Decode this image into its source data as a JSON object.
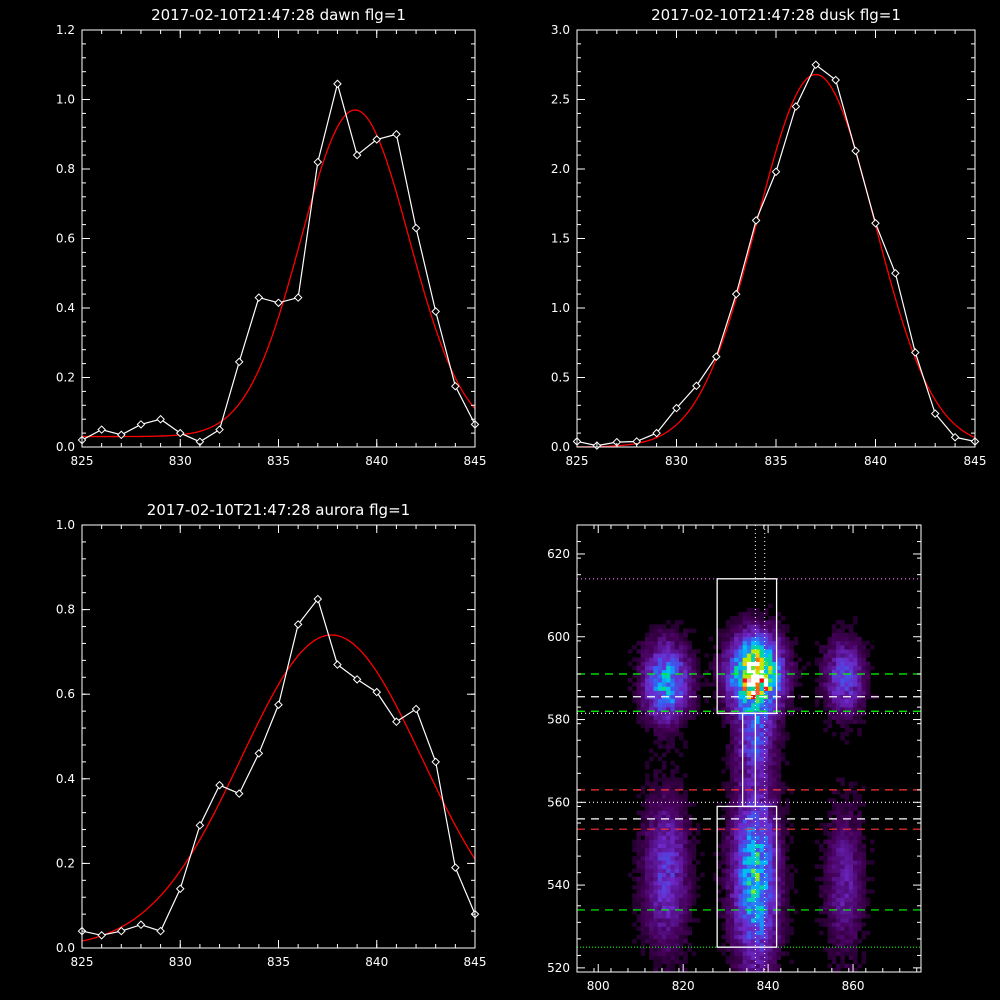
{
  "colors": {
    "background": "#000000",
    "data_line": "#ffffff",
    "fit_line": "#ff0000"
  },
  "chart_data": [
    {
      "type": "line",
      "title": "2017-02-10T21:47:28 dawn flg=1",
      "xlim": [
        825,
        845
      ],
      "ylim": [
        0,
        1.2
      ],
      "xticks": [
        "825",
        "830",
        "835",
        "840",
        "845"
      ],
      "yticks": [
        "0.0",
        "0.2",
        "0.4",
        "0.6",
        "0.8",
        "1.0",
        "1.2"
      ],
      "data": {
        "x": [
          825,
          826,
          827,
          828,
          829,
          830,
          831,
          832,
          833,
          834,
          835,
          836,
          837,
          838,
          839,
          840,
          841,
          842,
          843,
          844,
          845
        ],
        "y": [
          0.02,
          0.05,
          0.035,
          0.065,
          0.08,
          0.04,
          0.015,
          0.05,
          0.245,
          0.43,
          0.415,
          0.43,
          0.82,
          1.045,
          0.84,
          0.885,
          0.9,
          0.63,
          0.39,
          0.175,
          0.065
        ]
      },
      "fit": {
        "amplitude": 0.94,
        "center": 838.9,
        "sigma": 2.75,
        "offset": 0.03
      }
    },
    {
      "type": "line",
      "title": "2017-02-10T21:47:28 dusk flg=1",
      "xlim": [
        825,
        845
      ],
      "ylim": [
        0,
        3.0
      ],
      "xticks": [
        "825",
        "830",
        "835",
        "840",
        "845"
      ],
      "yticks": [
        "0.0",
        "0.5",
        "1.0",
        "1.5",
        "2.0",
        "2.5",
        "3.0"
      ],
      "data": {
        "x": [
          825,
          826,
          827,
          828,
          829,
          830,
          831,
          832,
          833,
          834,
          835,
          836,
          837,
          838,
          839,
          840,
          841,
          842,
          843,
          844,
          845
        ],
        "y": [
          0.04,
          0.01,
          0.035,
          0.04,
          0.1,
          0.28,
          0.44,
          0.65,
          1.1,
          1.63,
          1.98,
          2.45,
          2.75,
          2.64,
          2.13,
          1.61,
          1.25,
          0.68,
          0.24,
          0.07,
          0.04
        ]
      },
      "fit": {
        "amplitude": 2.68,
        "center": 837.0,
        "sigma": 2.95,
        "offset": 0.0
      }
    },
    {
      "type": "line",
      "title": "2017-02-10T21:47:28 aurora flg=1",
      "xlim": [
        825,
        845
      ],
      "ylim": [
        0,
        1.0
      ],
      "xticks": [
        "825",
        "830",
        "835",
        "840",
        "845"
      ],
      "yticks": [
        "0.0",
        "0.2",
        "0.4",
        "0.6",
        "0.8",
        "1.0"
      ],
      "data": {
        "x": [
          825,
          826,
          827,
          828,
          829,
          830,
          831,
          832,
          833,
          834,
          835,
          836,
          837,
          838,
          839,
          840,
          841,
          842,
          843,
          844,
          845
        ],
        "y": [
          0.04,
          0.03,
          0.04,
          0.055,
          0.04,
          0.14,
          0.29,
          0.385,
          0.365,
          0.46,
          0.575,
          0.765,
          0.825,
          0.67,
          0.635,
          0.605,
          0.535,
          0.565,
          0.44,
          0.19,
          0.08
        ]
      },
      "fit": {
        "amplitude": 0.74,
        "center": 837.7,
        "sigma": 4.6,
        "offset": 0.0
      }
    },
    {
      "type": "heatmap",
      "title": "",
      "xlim": [
        795,
        876
      ],
      "ylim": [
        519,
        627
      ],
      "xticks": [
        "800",
        "820",
        "840",
        "860"
      ],
      "yticks": [
        "520",
        "540",
        "560",
        "580",
        "600",
        "620"
      ],
      "blobs": [
        {
          "x": 816,
          "y": 589,
          "sx": 3.5,
          "sy": 6,
          "amp": 0.55
        },
        {
          "x": 837,
          "y": 591,
          "sx": 4,
          "sy": 6,
          "amp": 1.0
        },
        {
          "x": 837,
          "y": 575,
          "sx": 3,
          "sy": 6,
          "amp": 0.3
        },
        {
          "x": 858,
          "y": 590,
          "sx": 3,
          "sy": 6,
          "amp": 0.35
        },
        {
          "x": 837,
          "y": 542,
          "sx": 3.5,
          "sy": 14,
          "amp": 0.6
        },
        {
          "x": 816,
          "y": 543,
          "sx": 3.5,
          "sy": 12,
          "amp": 0.3
        },
        {
          "x": 858,
          "y": 541,
          "sx": 3,
          "sy": 12,
          "amp": 0.2
        }
      ],
      "rectangles": [
        {
          "x0": 828,
          "x1": 842,
          "y0": 581.5,
          "y1": 614
        },
        {
          "x0": 834,
          "x1": 837,
          "y0": 559,
          "y1": 581.5
        },
        {
          "x0": 828,
          "x1": 842,
          "y0": 525,
          "y1": 559
        }
      ],
      "vlines": [
        {
          "x": 837.0,
          "color": "#ffffff",
          "dash": "1 3"
        },
        {
          "x": 839.2,
          "color": "#ffffff",
          "dash": "1 3"
        }
      ],
      "hlines": [
        {
          "y": 614,
          "color": "#ff66ff",
          "dash": "1 3"
        },
        {
          "y": 591,
          "color": "#00ff00",
          "dash": "8 6"
        },
        {
          "y": 585.5,
          "color": "#ffffff",
          "dash": "8 6"
        },
        {
          "y": 582,
          "color": "#00ff00",
          "dash": "8 6"
        },
        {
          "y": 581.5,
          "color": "#ffffff",
          "dash": "1 3"
        },
        {
          "y": 563,
          "color": "#ff3333",
          "dash": "8 6"
        },
        {
          "y": 560,
          "color": "#ffffff",
          "dash": "1 3"
        },
        {
          "y": 556,
          "color": "#ffffff",
          "dash": "8 6"
        },
        {
          "y": 553.5,
          "color": "#ff3333",
          "dash": "8 6"
        },
        {
          "y": 534,
          "color": "#00ff00",
          "dash": "8 6"
        },
        {
          "y": 525,
          "color": "#00ff00",
          "dash": "1 2"
        }
      ]
    }
  ]
}
